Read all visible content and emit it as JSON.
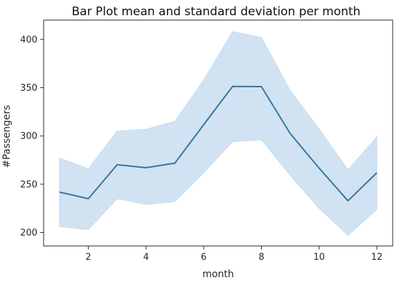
{
  "chart_data": {
    "type": "line",
    "title": "Bar Plot mean and standard deviation per month",
    "xlabel": "month",
    "ylabel": "#Passengers",
    "x": [
      1,
      2,
      3,
      4,
      5,
      6,
      7,
      8,
      9,
      10,
      11,
      12
    ],
    "series": [
      {
        "values": [
          241.8,
          235.0,
          270.2,
          267.1,
          271.8,
          311.7,
          351.3,
          351.1,
          302.4,
          266.6,
          232.8,
          261.8
        ],
        "lower": [
          206,
          203,
          235,
          229,
          232,
          262,
          294,
          296,
          259,
          225,
          197,
          224
        ],
        "upper": [
          277,
          266,
          305,
          307,
          315,
          358,
          408,
          402,
          347,
          307,
          265,
          299
        ]
      }
    ],
    "xticks": [
      2,
      4,
      6,
      8,
      10,
      12
    ],
    "yticks": [
      200,
      250,
      300,
      350,
      400
    ],
    "xlim": [
      0.45,
      12.55
    ],
    "ylim": [
      186,
      420
    ],
    "grid": false,
    "colors": {
      "line": "#3274a1",
      "band": "#c6dbef",
      "axis": "#262626"
    }
  }
}
